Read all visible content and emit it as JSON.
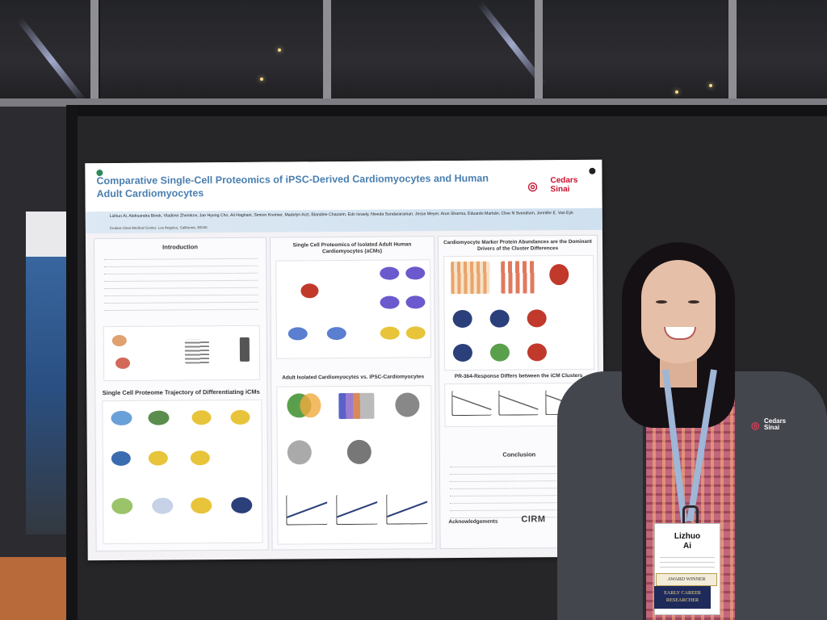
{
  "poster": {
    "title": "Comparative Single-Cell Proteomics of iPSC-Derived Cardiomyocytes and Human Adult Cardiomyocytes",
    "logo": "Cedars Sinai",
    "authors": "Lizhuo Ai, Aleksandra Binek, Vladimir Zhemkov, Jae Hyung Cho, Ali Haghani, Simion Kreimer, Madelyn Arzt, Blandine Chazarin, Edo Israely, Niveda Sundararaman, Jesse Meyer, Arun Sharma, Eduardo Marbán, Clive N Svendsen, Jennifer E. Van Eyk",
    "affiliation": "Cedars-Sinai Medical Center, Los Angeles, California, 90048",
    "sections": {
      "intro": "Introduction",
      "trajectory": "Single Cell Proteome Trajectory of Differentiating iCMs",
      "adult": "Single Cell Proteomics of Isolated Adult Human Cardiomyocytes (aCMs)",
      "compare": "Adult Isolated Cardiomyocytes vs. iPSC-Cardiomyocytes",
      "marker": "Cardiomyocyte Marker Protein Abundances are the Dominant Drivers of the Cluster Differences",
      "pr364": "PR-364-Response Differs between the iCM Clusters",
      "conclusion": "Conclusion",
      "acknowledgements": "Acknowledgements"
    },
    "cirm": "CIRM"
  },
  "badge": {
    "name_line1": "Lizhuo",
    "name_line2": "Ai",
    "ribbon_award": "AWARD WINNER",
    "ribbon_career": "EARLY CAREER RESEARCHER"
  },
  "jacket_logo": "Cedars Sinai"
}
